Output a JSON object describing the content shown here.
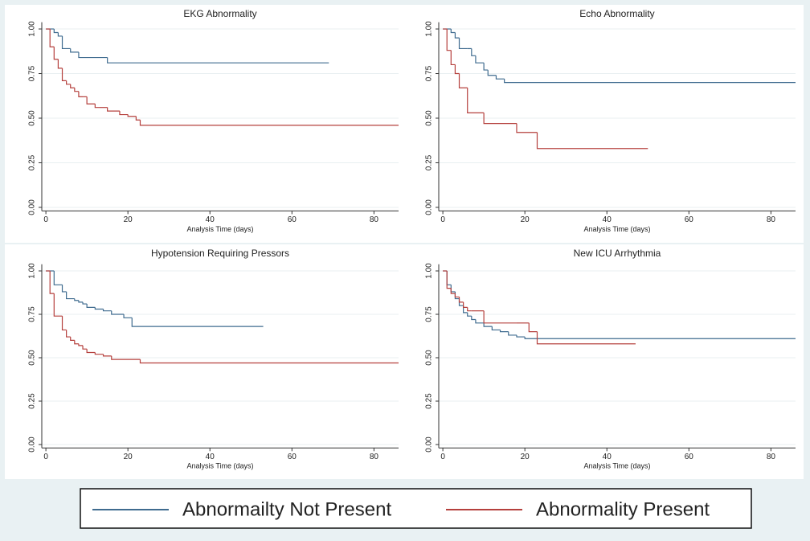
{
  "chart_data": [
    {
      "type": "line",
      "step": true,
      "title": "EKG Abnormality",
      "x_label": "Analysis Time (days)",
      "xlim": [
        -1,
        86
      ],
      "ylim": [
        -0.02,
        1.02
      ],
      "xticks": [
        0,
        20,
        40,
        60,
        80
      ],
      "yticks": [
        {
          "value": 0,
          "label": "0.00"
        },
        {
          "value": 0.25,
          "label": "0.25"
        },
        {
          "value": 0.5,
          "label": "0.50"
        },
        {
          "value": 0.75,
          "label": "0.75"
        },
        {
          "value": 1,
          "label": "1.00"
        }
      ],
      "grid": true,
      "series": [
        {
          "color": "#3f6b8f",
          "x": [
            0,
            2,
            3,
            4,
            6,
            8,
            15,
            69
          ],
          "values": [
            1,
            0.98,
            0.96,
            0.89,
            0.87,
            0.84,
            0.81,
            0.81
          ]
        },
        {
          "color": "#b5403d",
          "x": [
            0,
            1,
            2,
            3,
            4,
            5,
            6,
            7,
            8,
            9,
            10,
            12,
            13,
            15,
            18,
            20,
            22,
            23,
            86
          ],
          "values": [
            1,
            0.9,
            0.83,
            0.78,
            0.71,
            0.69,
            0.67,
            0.65,
            0.62,
            0.62,
            0.58,
            0.56,
            0.56,
            0.54,
            0.52,
            0.51,
            0.49,
            0.46,
            0.46
          ]
        }
      ]
    },
    {
      "type": "line",
      "step": true,
      "title": "Echo Abnormality",
      "x_label": "Analysis Time (days)",
      "xlim": [
        -1,
        86
      ],
      "ylim": [
        -0.02,
        1.02
      ],
      "xticks": [
        0,
        20,
        40,
        60,
        80
      ],
      "yticks": [
        {
          "value": 0,
          "label": "0.00"
        },
        {
          "value": 0.25,
          "label": "0.25"
        },
        {
          "value": 0.5,
          "label": "0.50"
        },
        {
          "value": 0.75,
          "label": "0.75"
        },
        {
          "value": 1,
          "label": "1.00"
        }
      ],
      "grid": true,
      "series": [
        {
          "color": "#3f6b8f",
          "x": [
            0,
            2,
            3,
            4,
            6,
            7,
            8,
            10,
            11,
            13,
            15,
            86
          ],
          "values": [
            1,
            0.98,
            0.95,
            0.89,
            0.89,
            0.85,
            0.81,
            0.77,
            0.74,
            0.72,
            0.7,
            0.7
          ]
        },
        {
          "color": "#b5403d",
          "x": [
            0,
            1,
            2,
            3,
            4,
            6,
            10,
            18,
            23,
            50
          ],
          "values": [
            1,
            0.88,
            0.8,
            0.75,
            0.67,
            0.53,
            0.47,
            0.42,
            0.33,
            0.33
          ]
        }
      ]
    },
    {
      "type": "line",
      "step": true,
      "title": "Hypotension Requiring Pressors",
      "x_label": "Analysis Time (days)",
      "xlim": [
        -1,
        86
      ],
      "ylim": [
        -0.02,
        1.02
      ],
      "xticks": [
        0,
        20,
        40,
        60,
        80
      ],
      "yticks": [
        {
          "value": 0,
          "label": "0.00"
        },
        {
          "value": 0.25,
          "label": "0.25"
        },
        {
          "value": 0.5,
          "label": "0.50"
        },
        {
          "value": 0.75,
          "label": "0.75"
        },
        {
          "value": 1,
          "label": "1.00"
        }
      ],
      "grid": true,
      "series": [
        {
          "color": "#3f6b8f",
          "x": [
            0,
            2,
            4,
            5,
            7,
            8,
            9,
            10,
            12,
            14,
            16,
            19,
            21,
            53
          ],
          "values": [
            1,
            0.92,
            0.88,
            0.84,
            0.83,
            0.82,
            0.81,
            0.79,
            0.78,
            0.77,
            0.75,
            0.73,
            0.68,
            0.68
          ]
        },
        {
          "color": "#b5403d",
          "x": [
            0,
            1,
            2,
            4,
            5,
            6,
            7,
            8,
            9,
            10,
            12,
            14,
            16,
            23,
            86
          ],
          "values": [
            1,
            0.87,
            0.74,
            0.66,
            0.62,
            0.6,
            0.58,
            0.57,
            0.55,
            0.53,
            0.52,
            0.51,
            0.49,
            0.47,
            0.47
          ]
        }
      ]
    },
    {
      "type": "line",
      "step": true,
      "title": "New ICU Arrhythmia",
      "x_label": "Analysis Time (days)",
      "xlim": [
        -1,
        86
      ],
      "ylim": [
        -0.02,
        1.02
      ],
      "xticks": [
        0,
        20,
        40,
        60,
        80
      ],
      "yticks": [
        {
          "value": 0,
          "label": "0.00"
        },
        {
          "value": 0.25,
          "label": "0.25"
        },
        {
          "value": 0.5,
          "label": "0.50"
        },
        {
          "value": 0.75,
          "label": "0.75"
        },
        {
          "value": 1,
          "label": "1.00"
        }
      ],
      "grid": true,
      "series": [
        {
          "color": "#3f6b8f",
          "x": [
            0,
            1,
            2,
            3,
            4,
            5,
            6,
            7,
            8,
            10,
            12,
            14,
            16,
            18,
            20,
            86
          ],
          "values": [
            1,
            0.92,
            0.88,
            0.84,
            0.8,
            0.76,
            0.74,
            0.72,
            0.7,
            0.68,
            0.66,
            0.65,
            0.63,
            0.62,
            0.61,
            0.61
          ]
        },
        {
          "color": "#b5403d",
          "x": [
            0,
            1,
            2,
            3,
            4,
            5,
            6,
            7,
            10,
            18,
            21,
            23,
            47
          ],
          "values": [
            1,
            0.9,
            0.87,
            0.85,
            0.82,
            0.79,
            0.77,
            0.77,
            0.7,
            0.7,
            0.65,
            0.58,
            0.58
          ]
        }
      ]
    }
  ],
  "legend": {
    "position": "bottom",
    "entries": [
      {
        "name": "Abnormailty Not Present",
        "color": "#3f6b8f"
      },
      {
        "name": "Abnormality Present",
        "color": "#b5403d"
      }
    ]
  }
}
